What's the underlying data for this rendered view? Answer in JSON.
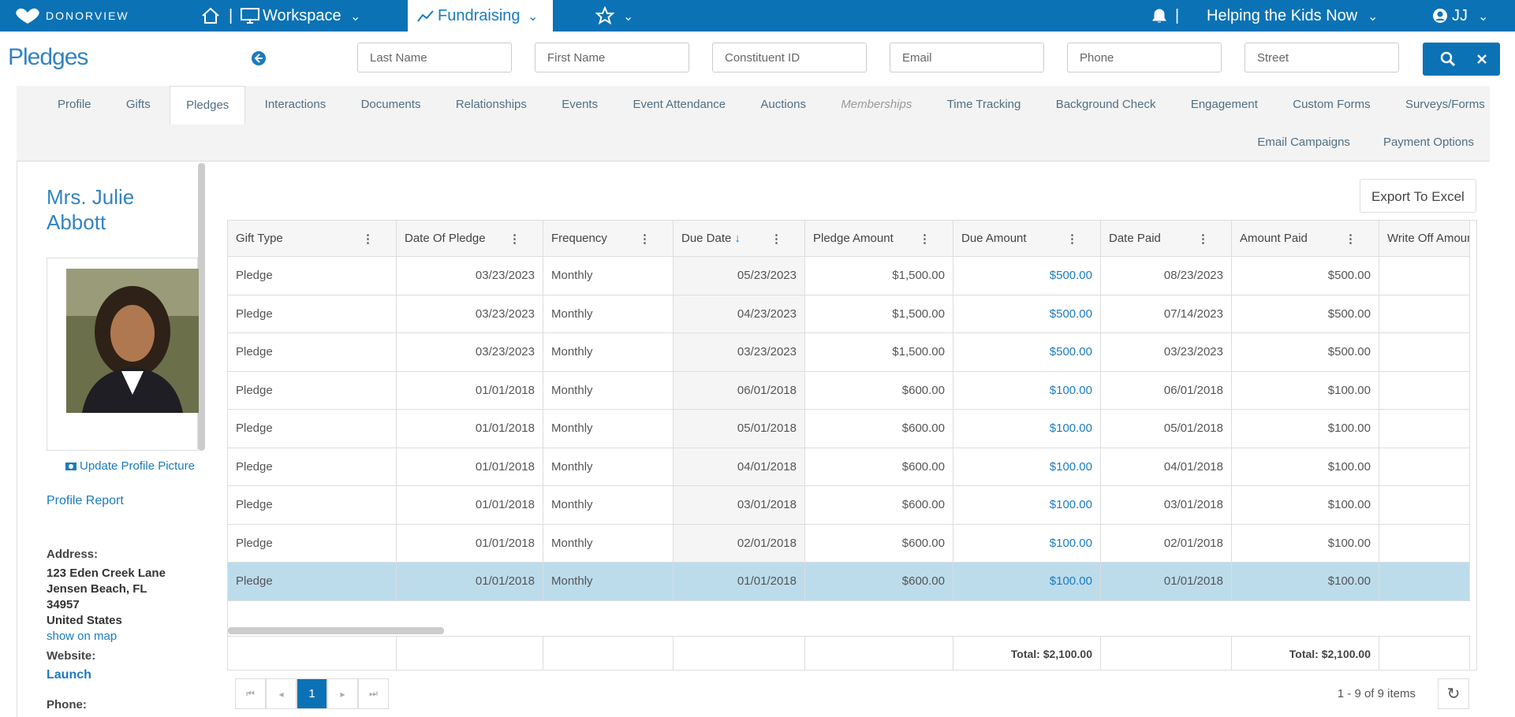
{
  "nav": {
    "brand": "DONORVIEW",
    "workspace": "Workspace",
    "fundraising": "Fundraising",
    "org": "Helping the Kids Now",
    "user": "JJ"
  },
  "header": {
    "title": "Pledges",
    "search": [
      "Last Name",
      "First Name",
      "Constituent ID",
      "Email",
      "Phone",
      "Street"
    ]
  },
  "tabs": {
    "row1": [
      "Profile",
      "Gifts",
      "Pledges",
      "Interactions",
      "Documents",
      "Relationships",
      "Events",
      "Event Attendance",
      "Auctions",
      "Memberships",
      "Time Tracking",
      "Background Check",
      "Engagement",
      "Custom Forms",
      "Surveys/Forms"
    ],
    "row2": [
      "Email Campaigns",
      "Payment Options"
    ],
    "active": "Pledges"
  },
  "sidebar": {
    "name_line1": "Mrs. Julie",
    "name_line2": "Abbott",
    "update_picture": "Update Profile Picture",
    "profile_report": "Profile Report",
    "address_label": "Address:",
    "address": [
      "123 Eden Creek Lane",
      "Jensen Beach, FL",
      "34957",
      "United States"
    ],
    "show_on_map": "show on map",
    "website_label": "Website:",
    "website": "Launch",
    "phone_label": "Phone:"
  },
  "table": {
    "export": "Export To Excel",
    "columns": [
      "Gift Type",
      "Date Of Pledge",
      "Frequency",
      "Due Date",
      "Pledge Amount",
      "Due Amount",
      "Date Paid",
      "Amount Paid",
      "Write Off Amour"
    ],
    "rows": [
      [
        "Pledge",
        "03/23/2023",
        "Monthly",
        "05/23/2023",
        "$1,500.00",
        "$500.00",
        "08/23/2023",
        "$500.00"
      ],
      [
        "Pledge",
        "03/23/2023",
        "Monthly",
        "04/23/2023",
        "$1,500.00",
        "$500.00",
        "07/14/2023",
        "$500.00"
      ],
      [
        "Pledge",
        "03/23/2023",
        "Monthly",
        "03/23/2023",
        "$1,500.00",
        "$500.00",
        "03/23/2023",
        "$500.00"
      ],
      [
        "Pledge",
        "01/01/2018",
        "Monthly",
        "06/01/2018",
        "$600.00",
        "$100.00",
        "06/01/2018",
        "$100.00"
      ],
      [
        "Pledge",
        "01/01/2018",
        "Monthly",
        "05/01/2018",
        "$600.00",
        "$100.00",
        "05/01/2018",
        "$100.00"
      ],
      [
        "Pledge",
        "01/01/2018",
        "Monthly",
        "04/01/2018",
        "$600.00",
        "$100.00",
        "04/01/2018",
        "$100.00"
      ],
      [
        "Pledge",
        "01/01/2018",
        "Monthly",
        "03/01/2018",
        "$600.00",
        "$100.00",
        "03/01/2018",
        "$100.00"
      ],
      [
        "Pledge",
        "01/01/2018",
        "Monthly",
        "02/01/2018",
        "$600.00",
        "$100.00",
        "02/01/2018",
        "$100.00"
      ],
      [
        "Pledge",
        "01/01/2018",
        "Monthly",
        "01/01/2018",
        "$600.00",
        "$100.00",
        "01/01/2018",
        "$100.00"
      ]
    ],
    "totals": {
      "due_amount": "Total: $2,100.00",
      "amount_paid": "Total: $2,100.00"
    },
    "page": "1",
    "summary": "1 - 9 of 9 items"
  }
}
